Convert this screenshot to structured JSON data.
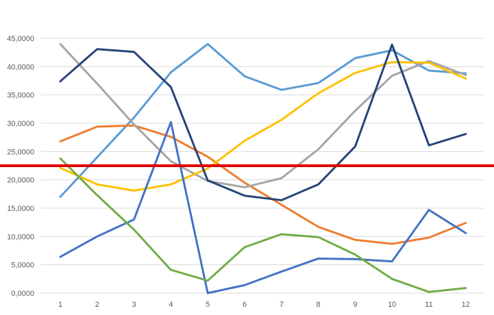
{
  "chart_data": {
    "type": "line",
    "title": "",
    "xlabel": "",
    "ylabel": "",
    "x": [
      1,
      2,
      3,
      4,
      5,
      6,
      7,
      8,
      9,
      10,
      11,
      12
    ],
    "x_tick_labels": [
      "1",
      "2",
      "3",
      "4",
      "5",
      "6",
      "7",
      "8",
      "9",
      "10",
      "11",
      "12"
    ],
    "ylim": [
      0,
      45000
    ],
    "y_ticks": [
      0,
      5000,
      10000,
      15000,
      20000,
      25000,
      30000,
      35000,
      40000,
      45000
    ],
    "y_tick_labels": [
      "0,0000",
      "5,0000",
      "10,0000",
      "15,0000",
      "20,0000",
      "25,0000",
      "30,0000",
      "35,0000",
      "40,0000",
      "45,0000"
    ],
    "grid": true,
    "legend": "none",
    "reference_line": {
      "y": 22500,
      "color": "#e00000"
    },
    "series": [
      {
        "color": "#5b9bd5",
        "values": [
          17000,
          24000,
          31000,
          39000,
          44000,
          38300,
          35900,
          37100,
          41500,
          42900,
          39300,
          38800
        ]
      },
      {
        "color": "#ed7d31",
        "values": [
          26800,
          29400,
          29600,
          27600,
          24100,
          19500,
          15600,
          11700,
          9400,
          8700,
          9800,
          12400
        ]
      },
      {
        "color": "#a5a5a5",
        "values": [
          44000,
          37000,
          29800,
          23300,
          19800,
          18700,
          20300,
          25400,
          32200,
          38400,
          41000,
          38500
        ]
      },
      {
        "color": "#ffc000",
        "values": [
          22100,
          19200,
          18100,
          19200,
          22000,
          26900,
          30600,
          35300,
          38900,
          40800,
          40700,
          37900
        ]
      },
      {
        "color": "#4472c4",
        "values": [
          6400,
          10000,
          13000,
          30200,
          0,
          1400,
          3800,
          6100,
          6000,
          5600,
          14700,
          10600
        ]
      },
      {
        "color": "#70ad47",
        "values": [
          23800,
          17300,
          11200,
          4100,
          2200,
          8100,
          10400,
          9900,
          6800,
          2500,
          200,
          900
        ]
      },
      {
        "color": "#264478",
        "values": [
          37400,
          43100,
          42600,
          36400,
          19900,
          17200,
          16400,
          19200,
          25900,
          43900,
          26100,
          28100
        ]
      }
    ]
  }
}
